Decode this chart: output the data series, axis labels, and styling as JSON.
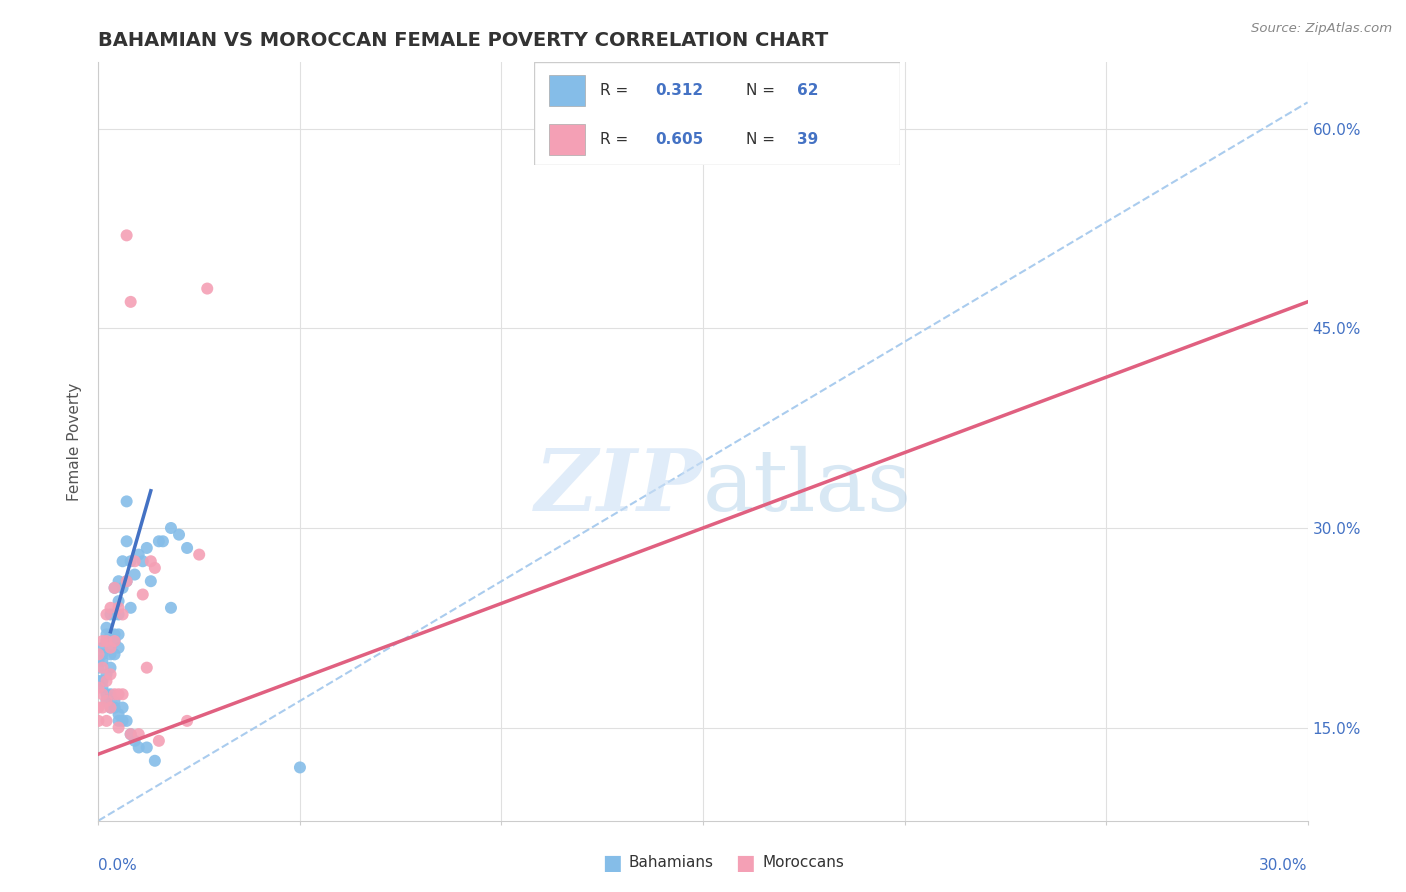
{
  "title": "BAHAMIAN VS MOROCCAN FEMALE POVERTY CORRELATION CHART",
  "source": "Source: ZipAtlas.com",
  "ylabel": "Female Poverty",
  "xlim": [
    0.0,
    0.3
  ],
  "ylim": [
    0.08,
    0.65
  ],
  "yticks": [
    0.15,
    0.3,
    0.45,
    0.6
  ],
  "ytick_labels": [
    "15.0%",
    "30.0%",
    "45.0%",
    "60.0%"
  ],
  "bahamian_R": "0.312",
  "bahamian_N": "62",
  "moroccan_R": "0.605",
  "moroccan_N": "39",
  "bahamian_color": "#85bde8",
  "moroccan_color": "#f4a0b5",
  "trendline_bahamian_color": "#4472c4",
  "trendline_moroccan_color": "#e06080",
  "trendline_dashed_color": "#aaccee",
  "legend_text_color": "#4472c4",
  "background_color": "#ffffff",
  "grid_color": "#e0e0e0",
  "title_color": "#333333",
  "ylabel_color": "#555555",
  "axis_label_color": "#4472c4",
  "bahamian_trendline": [
    [
      0.003,
      0.222
    ],
    [
      0.013,
      0.328
    ]
  ],
  "moroccan_trendline": [
    [
      0.0,
      0.13
    ],
    [
      0.3,
      0.47
    ]
  ],
  "dashed_line": [
    [
      0.0,
      0.08
    ],
    [
      0.3,
      0.62
    ]
  ],
  "bahamian_points": [
    [
      0.0,
      0.2
    ],
    [
      0.0,
      0.195
    ],
    [
      0.0,
      0.185
    ],
    [
      0.001,
      0.21
    ],
    [
      0.001,
      0.205
    ],
    [
      0.001,
      0.2
    ],
    [
      0.001,
      0.185
    ],
    [
      0.001,
      0.18
    ],
    [
      0.002,
      0.225
    ],
    [
      0.002,
      0.22
    ],
    [
      0.002,
      0.215
    ],
    [
      0.002,
      0.19
    ],
    [
      0.002,
      0.175
    ],
    [
      0.002,
      0.17
    ],
    [
      0.003,
      0.235
    ],
    [
      0.003,
      0.22
    ],
    [
      0.003,
      0.21
    ],
    [
      0.003,
      0.205
    ],
    [
      0.003,
      0.195
    ],
    [
      0.003,
      0.175
    ],
    [
      0.003,
      0.165
    ],
    [
      0.004,
      0.255
    ],
    [
      0.004,
      0.235
    ],
    [
      0.004,
      0.22
    ],
    [
      0.004,
      0.215
    ],
    [
      0.004,
      0.205
    ],
    [
      0.004,
      0.17
    ],
    [
      0.004,
      0.165
    ],
    [
      0.005,
      0.26
    ],
    [
      0.005,
      0.245
    ],
    [
      0.005,
      0.235
    ],
    [
      0.005,
      0.22
    ],
    [
      0.005,
      0.21
    ],
    [
      0.005,
      0.16
    ],
    [
      0.005,
      0.155
    ],
    [
      0.006,
      0.275
    ],
    [
      0.006,
      0.255
    ],
    [
      0.006,
      0.165
    ],
    [
      0.006,
      0.155
    ],
    [
      0.007,
      0.32
    ],
    [
      0.007,
      0.29
    ],
    [
      0.007,
      0.26
    ],
    [
      0.007,
      0.155
    ],
    [
      0.008,
      0.275
    ],
    [
      0.008,
      0.24
    ],
    [
      0.008,
      0.145
    ],
    [
      0.009,
      0.265
    ],
    [
      0.009,
      0.14
    ],
    [
      0.01,
      0.28
    ],
    [
      0.01,
      0.135
    ],
    [
      0.011,
      0.275
    ],
    [
      0.012,
      0.285
    ],
    [
      0.012,
      0.135
    ],
    [
      0.013,
      0.26
    ],
    [
      0.014,
      0.125
    ],
    [
      0.015,
      0.29
    ],
    [
      0.016,
      0.29
    ],
    [
      0.018,
      0.3
    ],
    [
      0.018,
      0.24
    ],
    [
      0.02,
      0.295
    ],
    [
      0.022,
      0.285
    ],
    [
      0.05,
      0.12
    ]
  ],
  "moroccan_points": [
    [
      0.0,
      0.205
    ],
    [
      0.0,
      0.18
    ],
    [
      0.0,
      0.165
    ],
    [
      0.0,
      0.155
    ],
    [
      0.001,
      0.215
    ],
    [
      0.001,
      0.195
    ],
    [
      0.001,
      0.175
    ],
    [
      0.001,
      0.165
    ],
    [
      0.002,
      0.235
    ],
    [
      0.002,
      0.215
    ],
    [
      0.002,
      0.185
    ],
    [
      0.002,
      0.17
    ],
    [
      0.002,
      0.155
    ],
    [
      0.003,
      0.24
    ],
    [
      0.003,
      0.21
    ],
    [
      0.003,
      0.19
    ],
    [
      0.003,
      0.165
    ],
    [
      0.004,
      0.255
    ],
    [
      0.004,
      0.215
    ],
    [
      0.004,
      0.175
    ],
    [
      0.005,
      0.24
    ],
    [
      0.005,
      0.175
    ],
    [
      0.005,
      0.15
    ],
    [
      0.006,
      0.235
    ],
    [
      0.006,
      0.175
    ],
    [
      0.007,
      0.52
    ],
    [
      0.007,
      0.26
    ],
    [
      0.008,
      0.47
    ],
    [
      0.008,
      0.145
    ],
    [
      0.009,
      0.275
    ],
    [
      0.01,
      0.145
    ],
    [
      0.011,
      0.25
    ],
    [
      0.012,
      0.195
    ],
    [
      0.013,
      0.275
    ],
    [
      0.014,
      0.27
    ],
    [
      0.015,
      0.14
    ],
    [
      0.022,
      0.155
    ],
    [
      0.025,
      0.28
    ],
    [
      0.027,
      0.48
    ]
  ]
}
